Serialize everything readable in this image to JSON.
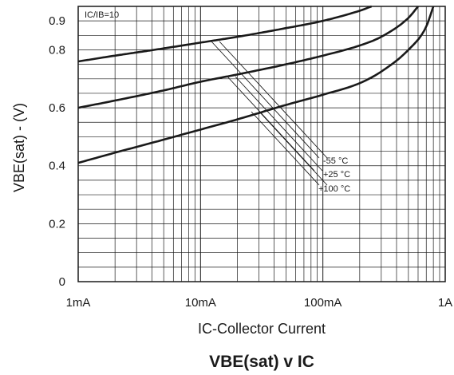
{
  "chart_data": {
    "type": "line",
    "title": "VBE(sat) v IC",
    "xlabel": "IC-Collector Current",
    "ylabel": "VBE(sat) - (V)",
    "x_scale": "log",
    "xlim_A": [
      0.001,
      1
    ],
    "ylim": [
      0,
      0.95
    ],
    "grid": true,
    "x_tick_labels": [
      "1mA",
      "10mA",
      "100mA",
      "1A"
    ],
    "y_tick_labels": [
      "0",
      "0.2",
      "0.4",
      "0.6",
      "0.8",
      "0.9"
    ],
    "condition_label": "IC/IB=10",
    "series": [
      {
        "name": "-55 °C",
        "x_A": [
          0.001,
          0.002,
          0.005,
          0.01,
          0.02,
          0.05,
          0.1,
          0.2,
          0.25
        ],
        "y": [
          0.76,
          0.78,
          0.805,
          0.825,
          0.845,
          0.875,
          0.9,
          0.935,
          0.95
        ]
      },
      {
        "name": "+25 °C",
        "x_A": [
          0.001,
          0.002,
          0.005,
          0.01,
          0.02,
          0.05,
          0.1,
          0.2,
          0.3,
          0.5,
          0.6
        ],
        "y": [
          0.6,
          0.625,
          0.66,
          0.69,
          0.715,
          0.75,
          0.78,
          0.815,
          0.845,
          0.91,
          0.95
        ]
      },
      {
        "name": "+100 °C",
        "x_A": [
          0.001,
          0.002,
          0.005,
          0.01,
          0.02,
          0.05,
          0.1,
          0.2,
          0.3,
          0.5,
          0.7,
          0.8
        ],
        "y": [
          0.41,
          0.445,
          0.49,
          0.525,
          0.56,
          0.61,
          0.645,
          0.685,
          0.725,
          0.8,
          0.88,
          0.95
        ]
      }
    ]
  }
}
